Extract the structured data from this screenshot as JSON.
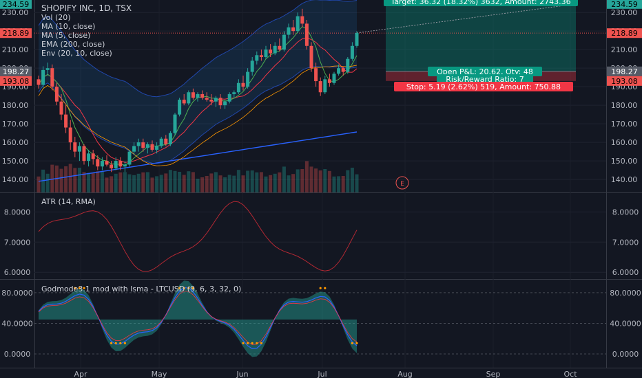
{
  "chart_data": {
    "type": "candlestick",
    "symbol": "SHOPIFY INC, 1D, TSX",
    "legend": [
      "Vol (20)",
      "MA (10, close)",
      "MA (5, close)",
      "EMA (200, close)",
      "Env (20, 10, close)"
    ],
    "x_ticks": [
      "Apr",
      "May",
      "Jun",
      "Jul",
      "Aug",
      "Sep",
      "Oct"
    ],
    "price_axis": {
      "ticks": [
        140,
        150,
        160,
        170,
        180,
        190,
        200,
        210,
        220,
        230
      ],
      "range": [
        133,
        236
      ]
    },
    "price_markers": [
      {
        "value": "234.59",
        "color": "#26a69a"
      },
      {
        "value": "218.89",
        "color": "#ef5350"
      },
      {
        "value": "198.27",
        "color": "#555a66"
      },
      {
        "value": "193.08",
        "color": "#ef5350"
      }
    ],
    "earnings_marker": "E",
    "candles": [
      [
        194,
        196,
        189,
        191
      ],
      [
        191,
        201,
        189,
        199
      ],
      [
        199,
        203,
        196,
        200
      ],
      [
        200,
        202,
        188,
        190
      ],
      [
        190,
        192,
        180,
        182
      ],
      [
        182,
        186,
        172,
        175
      ],
      [
        175,
        180,
        165,
        168
      ],
      [
        168,
        172,
        156,
        160
      ],
      [
        160,
        163,
        152,
        155
      ],
      [
        155,
        160,
        150,
        158
      ],
      [
        158,
        159,
        148,
        150
      ],
      [
        150,
        156,
        147,
        154
      ],
      [
        154,
        156,
        148,
        151
      ],
      [
        151,
        153,
        145,
        147
      ],
      [
        147,
        152,
        145,
        150
      ],
      [
        150,
        153,
        147,
        148
      ],
      [
        148,
        150,
        144,
        146
      ],
      [
        146,
        152,
        145,
        150
      ],
      [
        150,
        152,
        145,
        147
      ],
      [
        147,
        150,
        144,
        148
      ],
      [
        148,
        156,
        147,
        155
      ],
      [
        155,
        160,
        153,
        158
      ],
      [
        158,
        162,
        155,
        160
      ],
      [
        160,
        162,
        155,
        157
      ],
      [
        157,
        160,
        154,
        159
      ],
      [
        159,
        161,
        155,
        156
      ],
      [
        156,
        160,
        154,
        158
      ],
      [
        158,
        163,
        157,
        162
      ],
      [
        162,
        164,
        158,
        159
      ],
      [
        159,
        166,
        158,
        165
      ],
      [
        165,
        176,
        164,
        175
      ],
      [
        175,
        184,
        174,
        183
      ],
      [
        183,
        186,
        180,
        181
      ],
      [
        181,
        188,
        180,
        187
      ],
      [
        187,
        189,
        183,
        184
      ],
      [
        184,
        187,
        182,
        186
      ],
      [
        186,
        188,
        183,
        184
      ],
      [
        184,
        187,
        182,
        183
      ],
      [
        183,
        186,
        180,
        182
      ],
      [
        182,
        185,
        179,
        184
      ],
      [
        184,
        186,
        178,
        180
      ],
      [
        180,
        183,
        178,
        182
      ],
      [
        182,
        187,
        181,
        186
      ],
      [
        186,
        188,
        184,
        187
      ],
      [
        187,
        194,
        186,
        192
      ],
      [
        192,
        196,
        188,
        190
      ],
      [
        190,
        200,
        189,
        198
      ],
      [
        198,
        206,
        196,
        204
      ],
      [
        204,
        209,
        202,
        207
      ],
      [
        207,
        210,
        204,
        206
      ],
      [
        206,
        212,
        205,
        210
      ],
      [
        210,
        213,
        206,
        208
      ],
      [
        208,
        214,
        207,
        212
      ],
      [
        212,
        216,
        209,
        210
      ],
      [
        210,
        220,
        209,
        218
      ],
      [
        218,
        224,
        216,
        222
      ],
      [
        222,
        226,
        218,
        220
      ],
      [
        220,
        230,
        219,
        228
      ],
      [
        228,
        232,
        222,
        224
      ],
      [
        224,
        226,
        210,
        212
      ],
      [
        212,
        214,
        198,
        200
      ],
      [
        200,
        203,
        190,
        193
      ],
      [
        193,
        195,
        185,
        187
      ],
      [
        187,
        196,
        186,
        194
      ],
      [
        194,
        197,
        190,
        192
      ],
      [
        192,
        198,
        191,
        197
      ],
      [
        197,
        202,
        196,
        200
      ],
      [
        200,
        201,
        196,
        198
      ],
      [
        198,
        206,
        197,
        205
      ],
      [
        205,
        214,
        204,
        212
      ],
      [
        212,
        220,
        211,
        219
      ]
    ],
    "atr": {
      "title": "ATR (14, RMA)",
      "ticks": [
        "6.0000",
        "7.0000",
        "8.0000"
      ],
      "range": [
        5.8,
        8.6
      ]
    },
    "oscillator": {
      "title": "Godmode3.1 mod with lsma - LTCUSD (9, 6, 3, 32, 0)",
      "ticks": [
        "0.0000",
        "40.0000",
        "80.0000"
      ],
      "range": [
        -18,
        97
      ]
    },
    "position": {
      "target_label": "Target: 36.32 (18.32%) 3632, Amount: 2743.36",
      "pnl_label": "Open P&L: 20.62, Qty: 48",
      "rr_label": "Risk/Reward Ratio: 7",
      "stop_label": "Stop: 5.19 (2.62%) 519, Amount: 750.88",
      "entry": 198.27,
      "target": 234.59,
      "stop": 193.08
    }
  }
}
